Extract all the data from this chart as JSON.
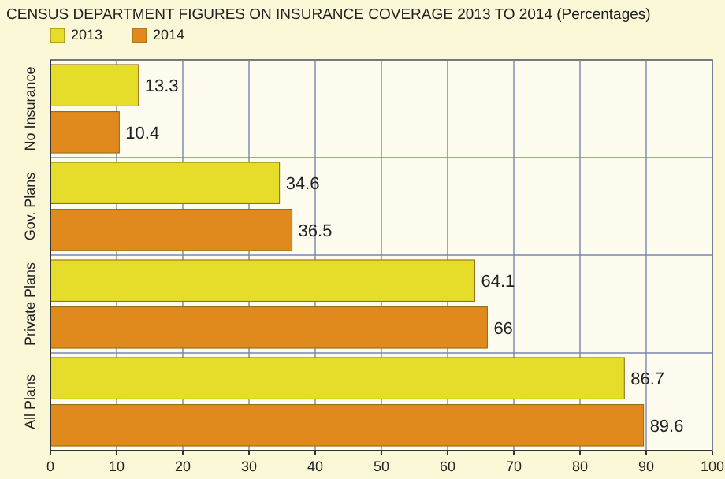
{
  "chart_data": {
    "type": "bar",
    "orientation": "horizontal",
    "title": "CENSUS DEPARTMENT FIGURES ON INSURANCE COVERAGE 2013 TO 2014 (Percentages)",
    "categories": [
      "No Insurance",
      "Gov. Plans",
      "Private Plans",
      "All Plans"
    ],
    "series": [
      {
        "name": "2013",
        "color": "#e6dc2a",
        "values": [
          13.3,
          34.6,
          64.1,
          86.7
        ]
      },
      {
        "name": "2014",
        "color": "#e08a1e",
        "values": [
          10.4,
          36.5,
          66,
          89.6
        ]
      }
    ],
    "xlim": [
      0,
      100
    ],
    "xticks": [
      0,
      10,
      20,
      30,
      40,
      50,
      60,
      70,
      80,
      90,
      100
    ],
    "grid": "x",
    "legend": "top left",
    "data_labels": true
  }
}
